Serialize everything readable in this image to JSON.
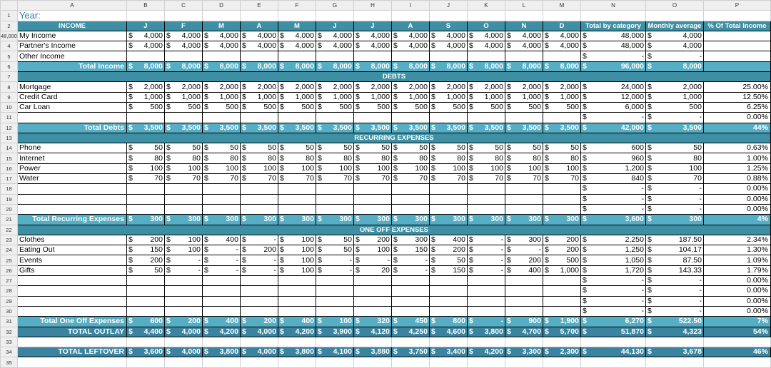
{
  "sheet": {
    "col_letters": [
      "",
      "A",
      "B",
      "C",
      "D",
      "E",
      "F",
      "G",
      "H",
      "I",
      "J",
      "K",
      "L",
      "M",
      "N",
      "O",
      "P"
    ],
    "year_label": "Year:",
    "rows": [
      {
        "n": "1",
        "type": "title",
        "label": "Year:"
      },
      {
        "n": "2",
        "type": "header",
        "label": "INCOME",
        "cols": [
          "J",
          "F",
          "M",
          "A",
          "M",
          "J",
          "J",
          "A",
          "S",
          "O",
          "N",
          "D"
        ],
        "n_hdr": "Total by category",
        "o_hdr": "Monthly average",
        "p_hdr": "% Of Total Income"
      },
      {
        "n": "48,000",
        "type": "data",
        "label": "My Income",
        "vals": [
          "4,000",
          "4,000",
          "4,000",
          "4,000",
          "4,000",
          "4,000",
          "4,000",
          "4,000",
          "4,000",
          "4,000",
          "4,000",
          "4,000"
        ],
        "o": "4,000",
        "p": ""
      },
      {
        "n": "4",
        "type": "data",
        "label": "Partner's Income",
        "vals": [
          "4,000",
          "4,000",
          "4,000",
          "4,000",
          "4,000",
          "4,000",
          "4,000",
          "4,000",
          "4,000",
          "4,000",
          "4,000",
          "4,000"
        ],
        "tn": "48,000",
        "to": "4,000",
        "p": ""
      },
      {
        "n": "5",
        "type": "data",
        "label": "Other Income",
        "vals": [
          "",
          "",
          "",
          "",
          "",
          "",
          "",
          "",
          "",
          "",
          "",
          ""
        ],
        "tn": "-",
        "to": "-",
        "p": ""
      },
      {
        "n": "6",
        "type": "total",
        "label": "Total Income",
        "vals": [
          "8,000",
          "8,000",
          "8,000",
          "8,000",
          "8,000",
          "8,000",
          "8,000",
          "8,000",
          "8,000",
          "8,000",
          "8,000",
          "8,000"
        ],
        "tn": "96,000",
        "to": "8,000",
        "p": ""
      },
      {
        "n": "7",
        "type": "section",
        "label": "DEBTS"
      },
      {
        "n": "8",
        "type": "data",
        "label": "Mortgage",
        "vals": [
          "2,000",
          "2,000",
          "2,000",
          "2,000",
          "2,000",
          "2,000",
          "2,000",
          "2,000",
          "2,000",
          "2,000",
          "2,000",
          "2,000"
        ],
        "tn": "24,000",
        "to": "2,000",
        "p": "25.00%"
      },
      {
        "n": "9",
        "type": "data",
        "label": "Credit Card",
        "vals": [
          "1,000",
          "1,000",
          "1,000",
          "1,000",
          "1,000",
          "1,000",
          "1,000",
          "1,000",
          "1,000",
          "1,000",
          "1,000",
          "1,000"
        ],
        "tn": "12,000",
        "to": "1,000",
        "p": "12.50%"
      },
      {
        "n": "10",
        "type": "data",
        "label": "Car Loan",
        "vals": [
          "500",
          "500",
          "500",
          "500",
          "500",
          "500",
          "500",
          "500",
          "500",
          "500",
          "500",
          "500"
        ],
        "tn": "6,000",
        "to": "500",
        "p": "6.25%"
      },
      {
        "n": "11",
        "type": "data",
        "label": "",
        "vals": [
          "",
          "",
          "",
          "",
          "",
          "",
          "",
          "",
          "",
          "",
          "",
          ""
        ],
        "tn": "-",
        "to": "-",
        "p": "0.00%"
      },
      {
        "n": "12",
        "type": "total",
        "label": "Total Debts",
        "vals": [
          "3,500",
          "3,500",
          "3,500",
          "3,500",
          "3,500",
          "3,500",
          "3,500",
          "3,500",
          "3,500",
          "3,500",
          "3,500",
          "3,500"
        ],
        "tn": "42,000",
        "to": "3,500",
        "p": "44%"
      },
      {
        "n": "13",
        "type": "section",
        "label": "RECURRING EXPENSES"
      },
      {
        "n": "14",
        "type": "data",
        "label": "Phone",
        "vals": [
          "50",
          "50",
          "50",
          "50",
          "50",
          "50",
          "50",
          "50",
          "50",
          "50",
          "50",
          "50"
        ],
        "tn": "600",
        "to": "50",
        "p": "0.63%"
      },
      {
        "n": "15",
        "type": "data",
        "label": "Internet",
        "vals": [
          "80",
          "80",
          "80",
          "80",
          "80",
          "80",
          "80",
          "80",
          "80",
          "80",
          "80",
          "80"
        ],
        "tn": "960",
        "to": "80",
        "p": "1.00%"
      },
      {
        "n": "16",
        "type": "data",
        "label": "Power",
        "vals": [
          "100",
          "100",
          "100",
          "100",
          "100",
          "100",
          "100",
          "100",
          "100",
          "100",
          "100",
          "100"
        ],
        "tn": "1,200",
        "to": "100",
        "p": "1.25%"
      },
      {
        "n": "17",
        "type": "data",
        "label": "Water",
        "vals": [
          "70",
          "70",
          "70",
          "70",
          "70",
          "70",
          "70",
          "70",
          "70",
          "70",
          "70",
          "70"
        ],
        "tn": "840",
        "to": "70",
        "p": "0.88%"
      },
      {
        "n": "18",
        "type": "data",
        "label": "",
        "vals": [
          "",
          "",
          "",
          "",
          "",
          "",
          "",
          "",
          "",
          "",
          "",
          ""
        ],
        "tn": "-",
        "to": "-",
        "p": "0.00%"
      },
      {
        "n": "19",
        "type": "data",
        "label": "",
        "vals": [
          "",
          "",
          "",
          "",
          "",
          "",
          "",
          "",
          "",
          "",
          "",
          ""
        ],
        "tn": "-",
        "to": "-",
        "p": "0.00%"
      },
      {
        "n": "20",
        "type": "data",
        "label": "",
        "vals": [
          "",
          "",
          "",
          "",
          "",
          "",
          "",
          "",
          "",
          "",
          "",
          ""
        ],
        "tn": "-",
        "to": "-",
        "p": "0.00%"
      },
      {
        "n": "21",
        "type": "total",
        "label": "Total Recurring Expenses",
        "vals": [
          "300",
          "300",
          "300",
          "300",
          "300",
          "300",
          "300",
          "300",
          "300",
          "300",
          "300",
          "300"
        ],
        "tn": "3,600",
        "to": "300",
        "p": "4%"
      },
      {
        "n": "22",
        "type": "section",
        "label": "ONE OFF EXPENSES"
      },
      {
        "n": "23",
        "type": "data",
        "label": "Clothes",
        "vals": [
          "200",
          "100",
          "400",
          "-",
          "100",
          "50",
          "200",
          "300",
          "400",
          "-",
          "300",
          "200"
        ],
        "tn": "2,250",
        "to": "187.50",
        "p": "2.34%"
      },
      {
        "n": "24",
        "type": "data",
        "label": "Eating Out",
        "vals": [
          "150",
          "100",
          "-",
          "200",
          "100",
          "50",
          "100",
          "150",
          "200",
          "-",
          "-",
          "200"
        ],
        "tn": "1,250",
        "to": "104.17",
        "p": "1.30%"
      },
      {
        "n": "25",
        "type": "data",
        "label": "Events",
        "vals": [
          "200",
          "-",
          "-",
          "-",
          "100",
          "-",
          "-",
          "-",
          "50",
          "-",
          "200",
          "500"
        ],
        "tn": "1,050",
        "to": "87.50",
        "p": "1.09%"
      },
      {
        "n": "26",
        "type": "data",
        "label": "Gifts",
        "vals": [
          "50",
          "-",
          "-",
          "-",
          "100",
          "-",
          "20",
          "-",
          "150",
          "-",
          "400",
          "1,000"
        ],
        "tn": "1,720",
        "to": "143.33",
        "p": "1.79%"
      },
      {
        "n": "27",
        "type": "data",
        "label": "",
        "vals": [
          "",
          "",
          "",
          "",
          "",
          "",
          "",
          "",
          "",
          "",
          "",
          ""
        ],
        "tn": "-",
        "to": "-",
        "p": "0.00%"
      },
      {
        "n": "28",
        "type": "data",
        "label": "",
        "vals": [
          "",
          "",
          "",
          "",
          "",
          "",
          "",
          "",
          "",
          "",
          "",
          ""
        ],
        "tn": "-",
        "to": "-",
        "p": "0.00%"
      },
      {
        "n": "29",
        "type": "data",
        "label": "",
        "vals": [
          "",
          "",
          "",
          "",
          "",
          "",
          "",
          "",
          "",
          "",
          "",
          ""
        ],
        "tn": "-",
        "to": "-",
        "p": "0.00%"
      },
      {
        "n": "30",
        "type": "data",
        "label": "",
        "vals": [
          "",
          "",
          "",
          "",
          "",
          "",
          "",
          "",
          "",
          "",
          "",
          ""
        ],
        "tn": "-",
        "to": "-",
        "p": "0.00%"
      },
      {
        "n": "31",
        "type": "total",
        "label": "Total One Off Expenses",
        "vals": [
          "600",
          "200",
          "400",
          "200",
          "400",
          "100",
          "320",
          "450",
          "800",
          "-",
          "900",
          "1,900"
        ],
        "tn": "6,270",
        "to": "522.50",
        "p": "7%"
      },
      {
        "n": "32",
        "type": "outlay",
        "label": "TOTAL OUTLAY",
        "vals": [
          "4,400",
          "4,000",
          "4,200",
          "4,000",
          "4,200",
          "3,900",
          "4,120",
          "4,250",
          "4,600",
          "3,800",
          "4,700",
          "5,700"
        ],
        "tn": "51,870",
        "to": "4,323",
        "p": "54%"
      },
      {
        "n": "33",
        "type": "blank"
      },
      {
        "n": "34",
        "type": "outlay",
        "label": "TOTAL LEFTOVER",
        "vals": [
          "3,600",
          "4,000",
          "3,800",
          "4,000",
          "3,800",
          "4,100",
          "3,880",
          "3,750",
          "3,400",
          "4,200",
          "3,300",
          "2,300"
        ],
        "tn": "44,130",
        "to": "3,678",
        "p": "46%"
      },
      {
        "n": "35",
        "type": "blank"
      }
    ],
    "currency": "$",
    "colors": {
      "section": "#3e8fa3",
      "total": "#55aec4",
      "outlay": "#3b84a0",
      "year": "#2d7e98"
    }
  }
}
